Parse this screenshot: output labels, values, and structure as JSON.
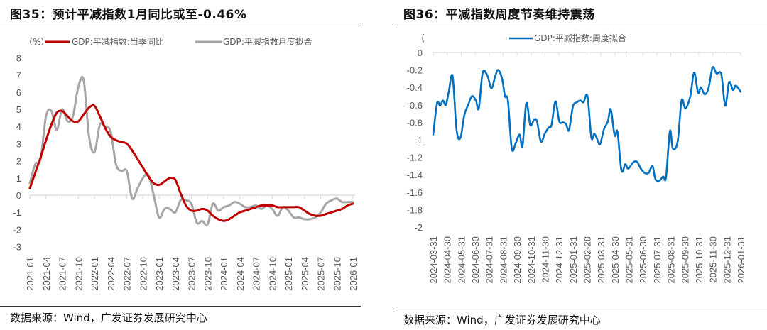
{
  "left": {
    "title": "图35：预计平减指数1月同比或至-0.46%",
    "source": "数据来源：Wind，广发证券发展研究中心",
    "unit_label": "（%）",
    "legend": [
      {
        "label": "GDP:平减指数:当季同比",
        "color": "#C00000"
      },
      {
        "label": "GDP:平减指数月度拟合",
        "color": "#A6A6A6"
      }
    ]
  },
  "right": {
    "title": "图36：平减指数周度节奏维持震荡",
    "source": "数据来源：Wind，广发证券发展研究中心",
    "unit_label": "（",
    "legend": [
      {
        "label": "GDP:平减指数:周度拟合",
        "color": "#0070C0"
      }
    ]
  },
  "chart_data": [
    {
      "type": "line",
      "title": "图35：预计平减指数1月同比或至-0.46%",
      "ylabel": "（%）",
      "xlabel": "",
      "ylim": [
        -3,
        8
      ],
      "yticks": [
        8,
        7,
        6,
        5,
        4,
        3,
        2,
        1,
        0,
        -1,
        -2,
        -3
      ],
      "x_tick_labels": [
        "2021-01",
        "2021-04",
        "2021-07",
        "2021-10",
        "2022-01",
        "2022-04",
        "2022-07",
        "2022-10",
        "2023-01",
        "2023-04",
        "2023-07",
        "2023-10",
        "2024-01",
        "2024-04",
        "2024-07",
        "2024-10",
        "2025-01",
        "2025-04",
        "2025-07",
        "2025-10",
        "2026-01"
      ],
      "legend_position": "top",
      "grid": false,
      "x": [
        "2021-01",
        "2021-02",
        "2021-03",
        "2021-04",
        "2021-05",
        "2021-06",
        "2021-07",
        "2021-08",
        "2021-09",
        "2021-10",
        "2021-11",
        "2021-12",
        "2022-01",
        "2022-02",
        "2022-03",
        "2022-04",
        "2022-05",
        "2022-06",
        "2022-07",
        "2022-08",
        "2022-09",
        "2022-10",
        "2022-11",
        "2022-12",
        "2023-01",
        "2023-02",
        "2023-03",
        "2023-04",
        "2023-05",
        "2023-06",
        "2023-07",
        "2023-08",
        "2023-09",
        "2023-10",
        "2023-11",
        "2023-12",
        "2024-01",
        "2024-02",
        "2024-03",
        "2024-04",
        "2024-05",
        "2024-06",
        "2024-07",
        "2024-08",
        "2024-09",
        "2024-10",
        "2024-11",
        "2024-12",
        "2025-01",
        "2025-02",
        "2025-03",
        "2025-04",
        "2025-05",
        "2025-06",
        "2025-07",
        "2025-08",
        "2025-09",
        "2025-10",
        "2025-11",
        "2025-12",
        "2026-01"
      ],
      "series": [
        {
          "name": "GDP:平减指数:当季同比",
          "color": "#C00000",
          "values": [
            0.4,
            1.3,
            2.2,
            3.2,
            4.1,
            4.8,
            4.9,
            4.6,
            4.3,
            4.3,
            4.7,
            5.1,
            5.2,
            4.6,
            3.9,
            3.4,
            3.2,
            3.1,
            3.0,
            2.6,
            2.1,
            1.6,
            1.1,
            0.7,
            0.6,
            0.8,
            1.0,
            0.9,
            0.1,
            -0.6,
            -0.9,
            -0.9,
            -0.8,
            -0.9,
            -1.2,
            -1.4,
            -1.5,
            -1.4,
            -1.2,
            -1.0,
            -0.9,
            -0.8,
            -0.7,
            -0.6,
            -0.6,
            -0.6,
            -0.7,
            -0.7,
            -0.7,
            -0.7,
            -0.7,
            -0.9,
            -1.1,
            -1.2,
            -1.2,
            -1.1,
            -1.0,
            -0.9,
            -0.8,
            -0.6,
            -0.5
          ]
        },
        {
          "name": "GDP:平减指数月度拟合",
          "color": "#A6A6A6",
          "values": [
            0.7,
            1.8,
            2.1,
            4.6,
            4.9,
            3.8,
            5.0,
            4.3,
            4.6,
            6.3,
            6.7,
            3.4,
            2.5,
            4.1,
            4.0,
            3.7,
            1.8,
            1.4,
            1.4,
            -0.2,
            0.4,
            1.0,
            1.2,
            0.0,
            -1.3,
            -0.8,
            -0.8,
            -1.0,
            -0.3,
            -0.3,
            -0.5,
            -1.6,
            -1.5,
            -1.7,
            -0.5,
            -0.9,
            -0.7,
            -0.6,
            -0.4,
            -0.5,
            -0.7,
            -0.7,
            -0.6,
            -0.8,
            -0.6,
            -0.8,
            -1.2,
            -0.7,
            -0.9,
            -1.3,
            -1.3,
            -1.4,
            -1.4,
            -1.3,
            -1.0,
            -0.5,
            -0.3,
            -0.2,
            -0.4,
            -0.4,
            -0.4
          ]
        }
      ]
    },
    {
      "type": "line",
      "title": "图36：平减指数周度节奏维持震荡",
      "ylabel": "",
      "xlabel": "",
      "ylim": [
        -2,
        0
      ],
      "yticks": [
        0,
        -0.2,
        -0.4,
        -0.6,
        -0.8,
        -1,
        -1.2,
        -1.4,
        -1.6,
        -1.8,
        -2
      ],
      "x_tick_labels": [
        "2024-03-31",
        "2024-04-30",
        "2024-05-31",
        "2024-06-30",
        "2024-07-31",
        "2024-08-31",
        "2024-09-30",
        "2024-10-31",
        "2024-11-30",
        "2024-12-31",
        "2025-01-31",
        "2025-02-28",
        "2025-03-31",
        "2025-04-30",
        "2025-05-31",
        "2025-06-30",
        "2025-07-31",
        "2025-08-31",
        "2025-09-30",
        "2025-10-31",
        "2025-11-30",
        "2025-12-31",
        "2026-01-31"
      ],
      "legend_position": "top",
      "grid": false,
      "series": [
        {
          "name": "GDP:平减指数:周度拟合",
          "color": "#0070C0",
          "points": [
            [
              0.0,
              -0.94
            ],
            [
              0.2,
              -0.58
            ],
            [
              0.35,
              -0.61
            ],
            [
              0.5,
              -0.55
            ],
            [
              0.65,
              -0.6
            ],
            [
              0.8,
              -0.45
            ],
            [
              1.0,
              -0.27
            ],
            [
              1.2,
              -0.88
            ],
            [
              1.4,
              -0.98
            ],
            [
              1.6,
              -0.72
            ],
            [
              1.8,
              -0.6
            ],
            [
              2.0,
              -0.5
            ],
            [
              2.2,
              -0.55
            ],
            [
              2.35,
              -0.64
            ],
            [
              2.55,
              -0.23
            ],
            [
              2.8,
              -0.27
            ],
            [
              3.0,
              -0.41
            ],
            [
              3.2,
              -0.27
            ],
            [
              3.35,
              -0.2
            ],
            [
              3.55,
              -0.3
            ],
            [
              3.7,
              -0.5
            ],
            [
              3.85,
              -0.55
            ],
            [
              4.05,
              -1.1
            ],
            [
              4.25,
              -1.04
            ],
            [
              4.45,
              -0.94
            ],
            [
              4.6,
              -1.07
            ],
            [
              4.8,
              -0.58
            ],
            [
              5.0,
              -0.83
            ],
            [
              5.2,
              -0.77
            ],
            [
              5.35,
              -0.79
            ],
            [
              5.55,
              -1.02
            ],
            [
              5.75,
              -0.93
            ],
            [
              5.95,
              -0.86
            ],
            [
              6.1,
              -0.83
            ],
            [
              6.3,
              -0.56
            ],
            [
              6.5,
              -0.79
            ],
            [
              6.7,
              -0.8
            ],
            [
              6.85,
              -0.82
            ],
            [
              7.0,
              -0.89
            ],
            [
              7.2,
              -0.62
            ],
            [
              7.4,
              -0.57
            ],
            [
              7.6,
              -0.55
            ],
            [
              7.75,
              -0.57
            ],
            [
              7.95,
              -0.5
            ],
            [
              8.15,
              -0.97
            ],
            [
              8.3,
              -0.93
            ],
            [
              8.45,
              -0.99
            ],
            [
              8.6,
              -1.05
            ],
            [
              8.8,
              -0.88
            ],
            [
              9.0,
              -0.79
            ],
            [
              9.15,
              -0.65
            ],
            [
              9.35,
              -0.95
            ],
            [
              9.5,
              -0.91
            ],
            [
              9.7,
              -1.35
            ],
            [
              9.9,
              -1.28
            ],
            [
              10.05,
              -1.33
            ],
            [
              10.3,
              -1.26
            ],
            [
              10.5,
              -1.25
            ],
            [
              10.7,
              -1.33
            ],
            [
              10.9,
              -1.38
            ],
            [
              11.1,
              -1.38
            ],
            [
              11.3,
              -1.3
            ],
            [
              11.45,
              -1.45
            ],
            [
              11.65,
              -1.47
            ],
            [
              11.85,
              -1.42
            ],
            [
              12.0,
              -1.43
            ],
            [
              12.2,
              -0.9
            ],
            [
              12.35,
              -1.1
            ],
            [
              12.6,
              -1.02
            ],
            [
              12.8,
              -0.55
            ],
            [
              13.0,
              -0.64
            ],
            [
              13.25,
              -0.5
            ],
            [
              13.45,
              -0.23
            ],
            [
              13.65,
              -0.46
            ],
            [
              13.8,
              -0.4
            ],
            [
              14.0,
              -0.48
            ],
            [
              14.2,
              -0.4
            ],
            [
              14.4,
              -0.17
            ],
            [
              14.6,
              -0.24
            ],
            [
              14.85,
              -0.25
            ],
            [
              15.05,
              -0.61
            ],
            [
              15.25,
              -0.34
            ],
            [
              15.45,
              -0.43
            ],
            [
              15.6,
              -0.38
            ],
            [
              15.85,
              -0.45
            ]
          ]
        }
      ]
    }
  ]
}
